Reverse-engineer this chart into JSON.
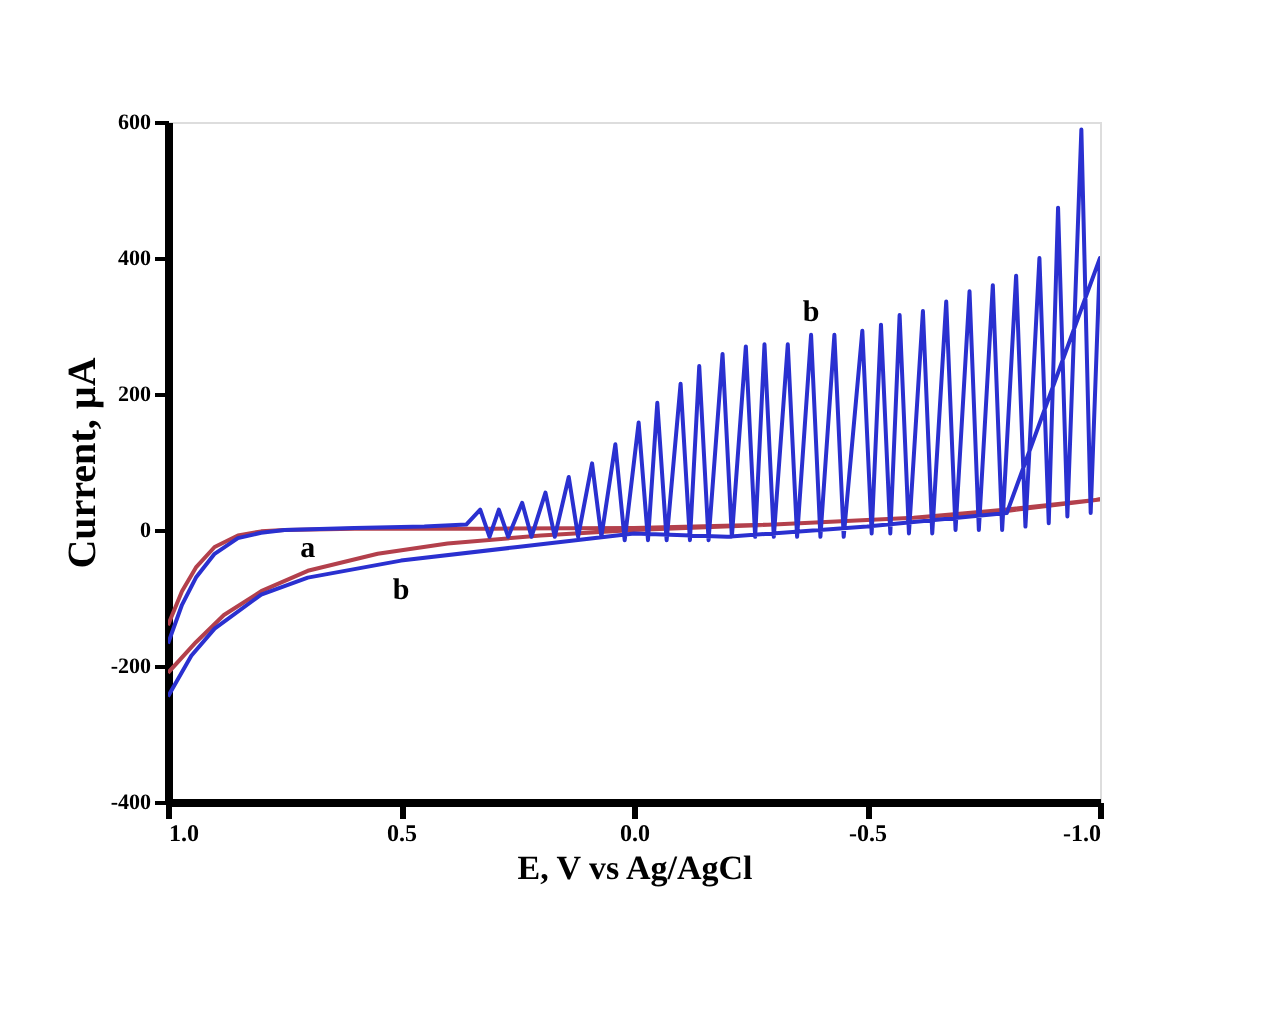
{
  "chart_data": {
    "type": "line",
    "xlabel": "E, V vs Ag/AgCl",
    "ylabel": "Current, µA",
    "xlim": [
      1.0,
      -1.0
    ],
    "ylim": [
      -400,
      600
    ],
    "xticks": [
      {
        "value": 1.0,
        "label": "1.0"
      },
      {
        "value": 0.5,
        "label": "0.5"
      },
      {
        "value": 0.0,
        "label": "0.0"
      },
      {
        "value": -0.5,
        "label": "-0.5"
      },
      {
        "value": -1.0,
        "label": "-1.0"
      }
    ],
    "yticks": [
      -400,
      -200,
      0,
      200,
      400,
      600
    ],
    "grid": false,
    "marker": "none",
    "line_style": "solid",
    "series": [
      {
        "color": "#b3404c",
        "x": [
          1.0,
          0.97,
          0.94,
          0.9,
          0.85,
          0.8,
          0.75,
          0.6,
          0.3,
          0.0,
          -0.3,
          -0.6,
          -0.8,
          -1.0,
          -0.8,
          -0.6,
          -0.3,
          0.0,
          0.2,
          0.4,
          0.55,
          0.7,
          0.8,
          0.88,
          0.94,
          1.0
        ],
        "values": [
          -140,
          -90,
          -55,
          -25,
          -8,
          -2,
          0,
          2,
          2,
          3,
          8,
          18,
          28,
          45,
          30,
          18,
          8,
          0,
          -8,
          -20,
          -35,
          -60,
          -90,
          -125,
          -165,
          -210
        ]
      },
      {
        "color": "#2a30d0",
        "x": [
          1.0,
          0.97,
          0.94,
          0.9,
          0.85,
          0.8,
          0.75,
          0.6,
          0.45,
          0.36,
          0.33,
          0.31,
          0.29,
          0.27,
          0.24,
          0.22,
          0.19,
          0.17,
          0.14,
          0.12,
          0.09,
          0.07,
          0.04,
          0.02,
          -0.01,
          -0.03,
          -0.05,
          -0.07,
          -0.1,
          -0.12,
          -0.14,
          -0.16,
          -0.19,
          -0.21,
          -0.24,
          -0.26,
          -0.28,
          -0.3,
          -0.33,
          -0.35,
          -0.38,
          -0.4,
          -0.43,
          -0.45,
          -0.49,
          -0.51,
          -0.53,
          -0.55,
          -0.57,
          -0.59,
          -0.62,
          -0.64,
          -0.67,
          -0.69,
          -0.72,
          -0.74,
          -0.77,
          -0.79,
          -0.82,
          -0.84,
          -0.87,
          -0.89,
          -0.91,
          -0.93,
          -0.96,
          -0.98,
          -1.0,
          -0.8,
          -0.5,
          -0.2,
          0.0,
          0.25,
          0.5,
          0.7,
          0.8,
          0.9,
          0.95,
          1.0
        ],
        "values": [
          -167,
          -110,
          -70,
          -35,
          -12,
          -4,
          0,
          3,
          5,
          8,
          30,
          -10,
          30,
          -10,
          40,
          -10,
          55,
          -10,
          78,
          -10,
          98,
          -10,
          126,
          -15,
          158,
          -15,
          187,
          -15,
          215,
          -15,
          241,
          -15,
          259,
          -10,
          270,
          -10,
          273,
          -10,
          273,
          -10,
          287,
          -10,
          287,
          -10,
          293,
          -5,
          302,
          -5,
          316,
          -5,
          322,
          -5,
          336,
          0,
          351,
          0,
          360,
          0,
          374,
          5,
          400,
          10,
          474,
          20,
          589,
          25,
          400,
          25,
          5,
          -10,
          -5,
          -25,
          -45,
          -70,
          -95,
          -145,
          -185,
          -245
        ]
      }
    ],
    "annotations": [
      {
        "text": "a",
        "x": 0.7,
        "y": -60
      },
      {
        "text": "b",
        "x": 0.5,
        "y": -45
      },
      {
        "text": "b",
        "x": -0.38,
        "y": 287
      }
    ]
  }
}
